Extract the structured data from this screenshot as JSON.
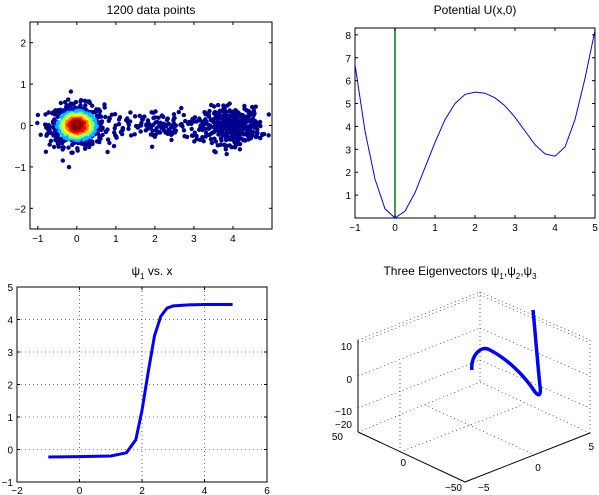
{
  "chart_data": [
    {
      "type": "scatter",
      "title": "1200 data points",
      "xlim": [
        -1.2,
        5.0
      ],
      "ylim": [
        -2.5,
        2.5
      ],
      "xticks": [
        "−1",
        "0",
        "1",
        "2",
        "3",
        "4"
      ],
      "yticks": [
        "−2",
        "−1",
        "0",
        "1",
        "2"
      ],
      "colormap": [
        "#00008f",
        "#0000ff",
        "#00bfff",
        "#7fff7f",
        "#ffff00",
        "#ff7f00",
        "#ff0000",
        "#8f0000"
      ],
      "point_count": 1200,
      "clusters": [
        {
          "center": [
            0.0,
            0.0
          ],
          "spread": [
            0.35,
            0.25
          ],
          "count": 650
        },
        {
          "center": [
            2.1,
            0.0
          ],
          "spread": [
            0.9,
            0.18
          ],
          "count": 170
        },
        {
          "center": [
            4.0,
            0.0
          ],
          "spread": [
            0.35,
            0.22
          ],
          "count": 380
        }
      ],
      "grid": false
    },
    {
      "type": "line",
      "title": "Potential U(x,0)",
      "xlim": [
        -1,
        5
      ],
      "ylim": [
        0,
        8.3
      ],
      "xticks": [
        "−1",
        "0",
        "1",
        "2",
        "3",
        "4",
        "5"
      ],
      "yticks": [
        "1",
        "2",
        "3",
        "4",
        "5",
        "6",
        "7",
        "8"
      ],
      "series": [
        {
          "color": "#0000ff",
          "x": [
            -1.0,
            -0.75,
            -0.5,
            -0.25,
            0.0,
            0.25,
            0.5,
            0.75,
            1.0,
            1.25,
            1.5,
            1.75,
            2.0,
            2.25,
            2.5,
            2.75,
            3.0,
            3.25,
            3.5,
            3.75,
            4.0,
            4.25,
            4.5,
            4.75,
            5.0
          ],
          "y": [
            6.7,
            3.8,
            1.7,
            0.4,
            0.0,
            0.3,
            1.1,
            2.2,
            3.3,
            4.3,
            5.0,
            5.4,
            5.5,
            5.45,
            5.25,
            4.9,
            4.4,
            3.8,
            3.2,
            2.8,
            2.7,
            3.1,
            4.3,
            6.1,
            8.2
          ]
        }
      ],
      "vline": {
        "x": 0,
        "y_range": [
          0,
          8.3
        ],
        "color": "#008000"
      },
      "grid": false
    },
    {
      "type": "scatter",
      "title": "ψ vs. x",
      "title_sub": "1",
      "xlim": [
        -2,
        6
      ],
      "ylim": [
        -1,
        5
      ],
      "xticks": [
        "−2",
        "0",
        "2",
        "4",
        "6"
      ],
      "yticks": [
        "−1",
        "0",
        "1",
        "2",
        "3",
        "4",
        "5"
      ],
      "curve": {
        "x": [
          -1.0,
          0.0,
          1.0,
          1.5,
          1.8,
          2.0,
          2.2,
          2.4,
          2.6,
          2.8,
          3.0,
          3.5,
          4.0,
          4.9
        ],
        "y": [
          -0.23,
          -0.22,
          -0.2,
          -0.1,
          0.3,
          1.2,
          2.4,
          3.5,
          4.1,
          4.35,
          4.42,
          4.45,
          4.46,
          4.46
        ]
      },
      "color": "#0000ff",
      "grid": true
    },
    {
      "type": "scatter",
      "title": "Three Eigenvectors ψ,ψ,ψ",
      "title_subs": [
        "1",
        "2",
        "3"
      ],
      "zticks": [
        "−20",
        "−10",
        "0",
        "10"
      ],
      "yticks": [
        "50",
        "0",
        "−50"
      ],
      "xticks": [
        "−5",
        "0",
        "5"
      ],
      "color": "#0000ff",
      "grid": true
    }
  ]
}
